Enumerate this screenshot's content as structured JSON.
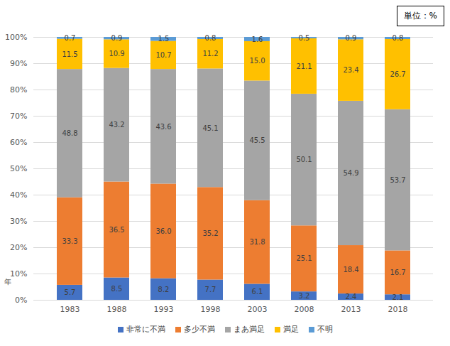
{
  "chart_data": {
    "type": "bar",
    "stacked": true,
    "data_labels": true,
    "grid": true,
    "legend": "bottom",
    "x_label": "年",
    "annotations": [
      "単位：%"
    ],
    "categories": [
      "1983",
      "1988",
      "1993",
      "1998",
      "2003",
      "2008",
      "2013",
      "2018"
    ],
    "ylim": [
      0,
      100
    ],
    "yticks": [
      {
        "value": 0,
        "label": "0%"
      },
      {
        "value": 10,
        "label": "10%"
      },
      {
        "value": 20,
        "label": "20%"
      },
      {
        "value": 30,
        "label": "30%"
      },
      {
        "value": 40,
        "label": "40%"
      },
      {
        "value": 50,
        "label": "50%"
      },
      {
        "value": 60,
        "label": "60%"
      },
      {
        "value": 70,
        "label": "70%"
      },
      {
        "value": 80,
        "label": "80%"
      },
      {
        "value": 90,
        "label": "90%"
      },
      {
        "value": 100,
        "label": "100%"
      }
    ],
    "series": [
      {
        "name": "非常に不満",
        "color": "#4472c4",
        "values": [
          5.7,
          8.5,
          8.2,
          7.7,
          6.1,
          3.2,
          2.4,
          2.1
        ],
        "value_labels": [
          "5.7",
          "8.5",
          "8.2",
          "7.7",
          "6.1",
          "3.2",
          "2.4",
          "2.1"
        ]
      },
      {
        "name": "多少不満",
        "color": "#ed7d31",
        "values": [
          33.3,
          36.5,
          36.0,
          35.2,
          31.8,
          25.1,
          18.4,
          16.7
        ],
        "value_labels": [
          "33.3",
          "36.5",
          "36.0",
          "35.2",
          "31.8",
          "25.1",
          "18.4",
          "16.7"
        ]
      },
      {
        "name": "まあ満足",
        "color": "#a5a5a5",
        "values": [
          48.8,
          43.2,
          43.6,
          45.1,
          45.5,
          50.1,
          54.9,
          53.7
        ],
        "value_labels": [
          "48.8",
          "43.2",
          "43.6",
          "45.1",
          "45.5",
          "50.1",
          "54.9",
          "53.7"
        ]
      },
      {
        "name": "満足",
        "color": "#ffc000",
        "values": [
          11.5,
          10.9,
          10.7,
          11.2,
          15.0,
          21.1,
          23.4,
          26.7
        ],
        "value_labels": [
          "11.5",
          "10.9",
          "10.7",
          "11.2",
          "15.0",
          "21.1",
          "23.4",
          "26.7"
        ]
      },
      {
        "name": "不明",
        "color": "#5b9bd5",
        "values": [
          0.7,
          0.9,
          1.5,
          0.8,
          1.6,
          0.5,
          0.9,
          0.8
        ],
        "value_labels": [
          "0.7",
          "0.9",
          "1.5",
          "0.8",
          "1.6",
          "0.5",
          "0.9",
          "0.8"
        ]
      }
    ]
  }
}
